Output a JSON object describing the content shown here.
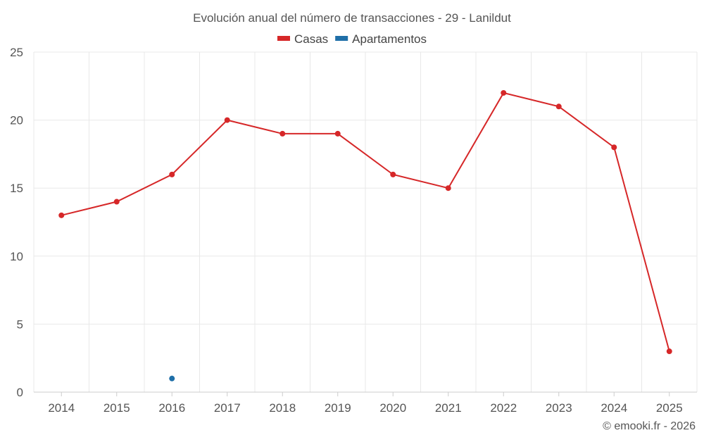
{
  "chart_data": {
    "type": "line",
    "title": "Evolución anual del número de transacciones - 29 - Lanildut",
    "categories": [
      "2014",
      "2015",
      "2016",
      "2017",
      "2018",
      "2019",
      "2020",
      "2021",
      "2022",
      "2023",
      "2024",
      "2025"
    ],
    "series": [
      {
        "name": "Casas",
        "color": "#d62728",
        "values": [
          13,
          14,
          16,
          20,
          19,
          19,
          16,
          15,
          22,
          21,
          18,
          3
        ]
      },
      {
        "name": "Apartamentos",
        "color": "#1f6fa8",
        "values": [
          null,
          null,
          1,
          null,
          null,
          null,
          null,
          null,
          null,
          null,
          null,
          null
        ]
      }
    ],
    "ylim": [
      0,
      25
    ],
    "yticks": [
      0,
      5,
      10,
      15,
      20,
      25
    ],
    "grid": true,
    "legend": "top-center"
  },
  "credit": "© emooki.fr - 2026"
}
